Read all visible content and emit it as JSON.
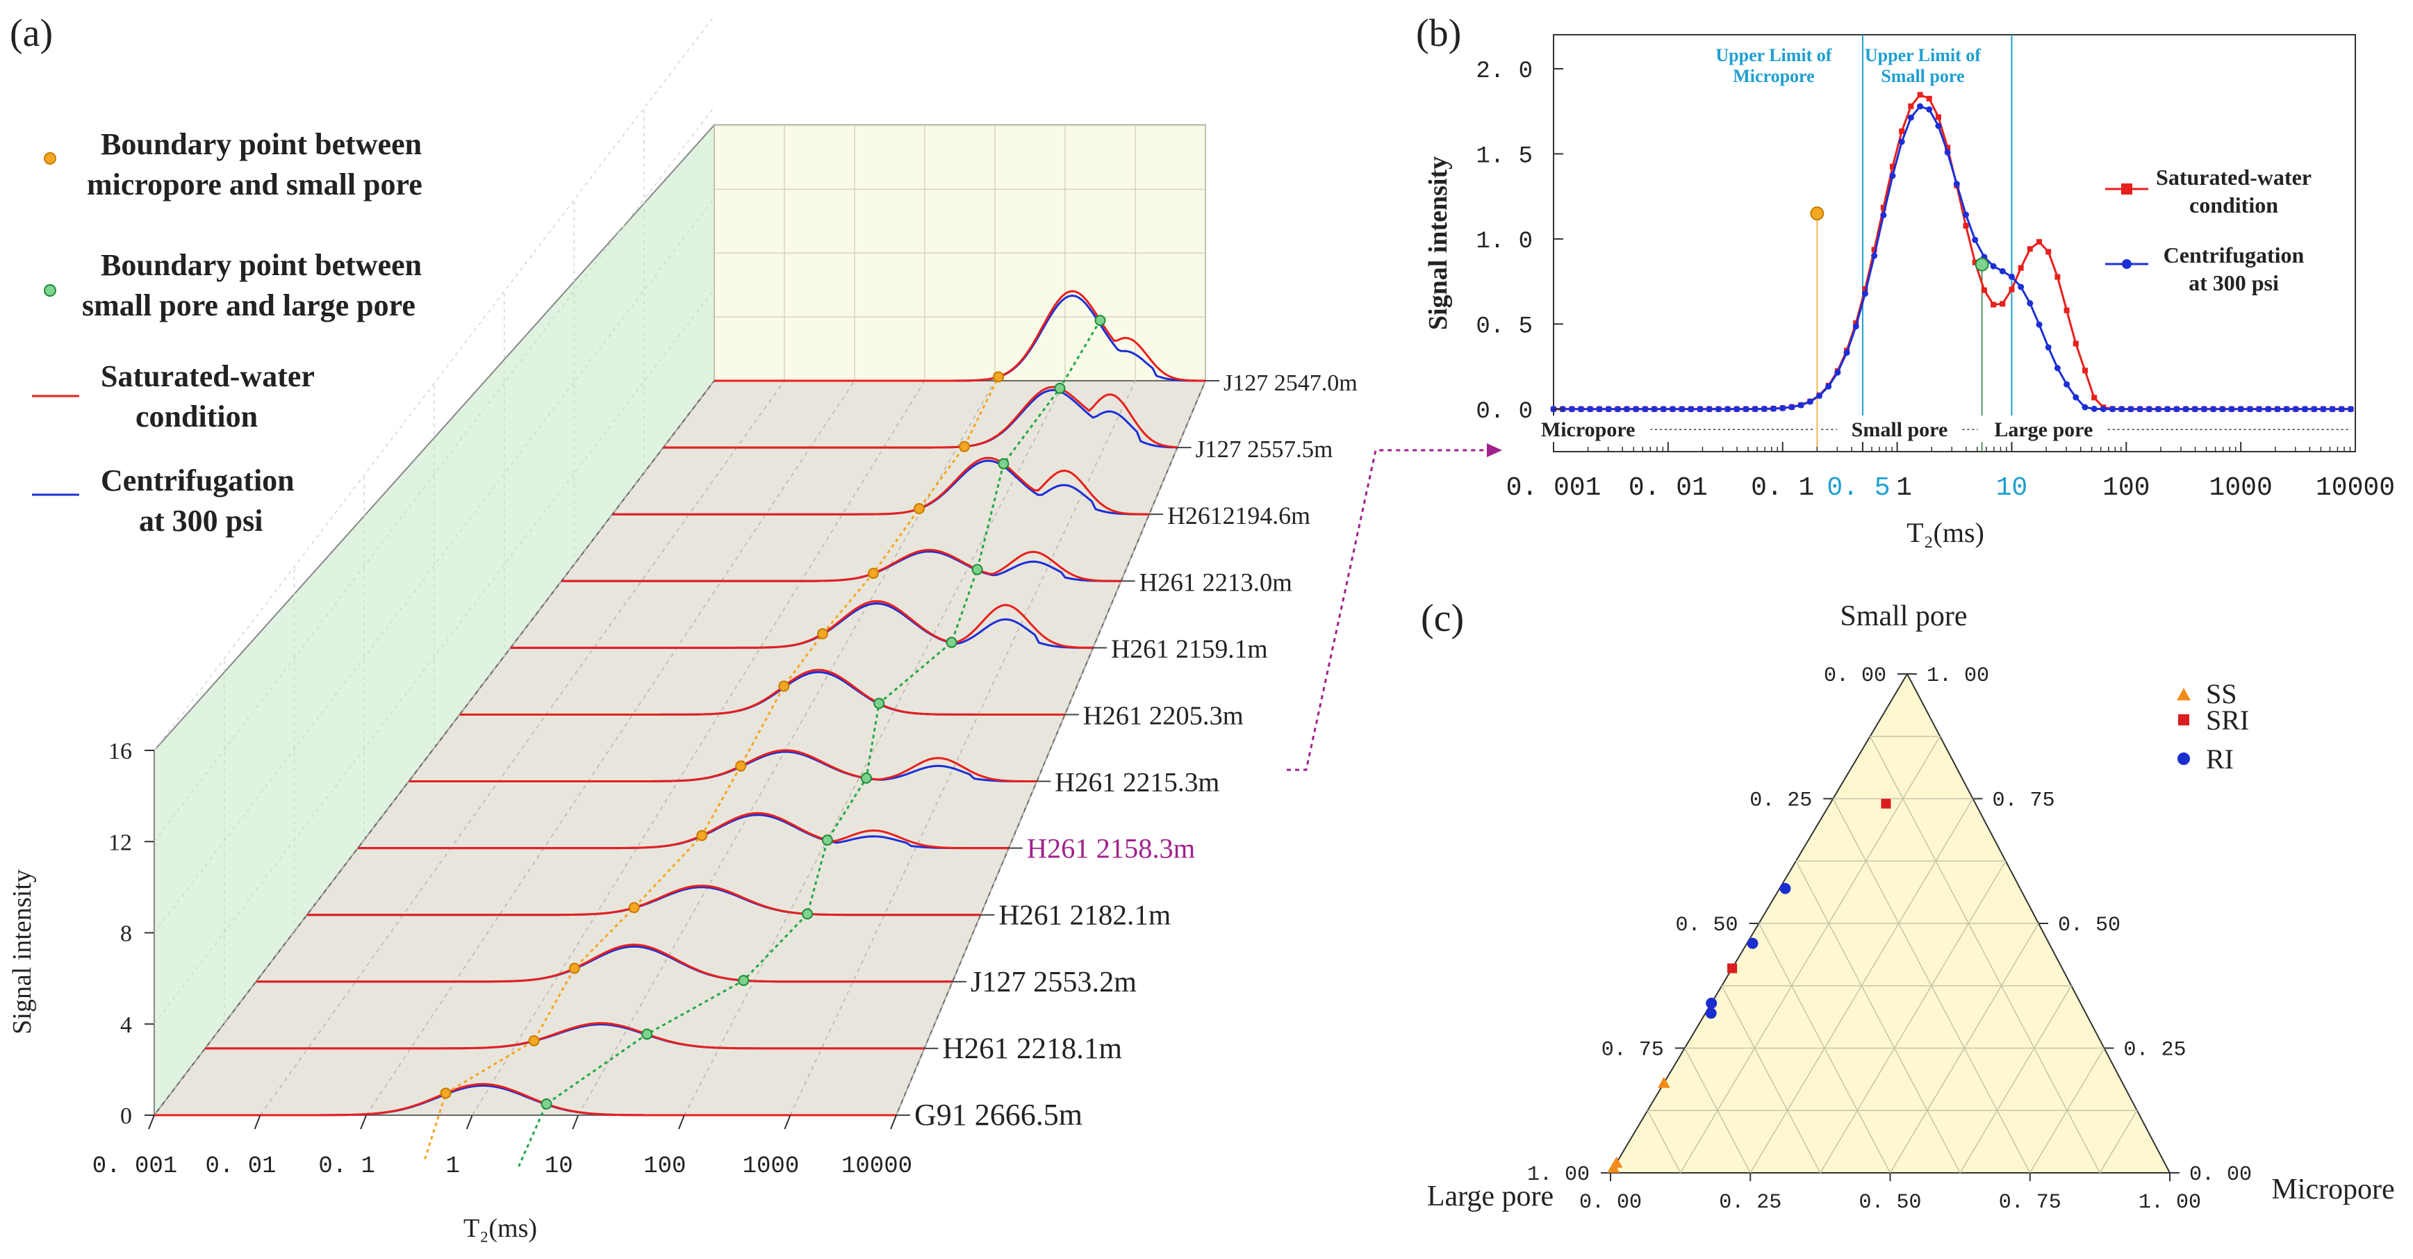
{
  "panel_labels": {
    "a": "(a)",
    "b": "(b)",
    "c": "(c)"
  },
  "colors": {
    "saturated": "#e8201c",
    "centrifuged": "#1c2fd6",
    "micro_small_point": "#f5a623",
    "small_large_point": "#22a845",
    "highlight": "#a0208c",
    "ternary_fill": "#fdf8d0",
    "left_wall": "#dff3e0",
    "back_wall": "#fafae8",
    "floor": "#e8e6dc",
    "limit_line": "#1e9fd0",
    "ss": "#f08c1a",
    "sri": "#d81e1e",
    "ri": "#1a2ed0"
  },
  "chart_data": [
    {
      "id": "a",
      "type": "line",
      "title": "",
      "xlabel": "T₂(ms)",
      "ylabel": "Signal intensity",
      "x_ticks": [
        "0. 001",
        "0. 01",
        "0. 1",
        "1",
        "10",
        "100",
        "1000",
        "10000"
      ],
      "y_ticks": [
        "0",
        "4",
        "8",
        "12",
        "16"
      ],
      "xlim_log10": [
        -3,
        4
      ],
      "ylim": [
        0,
        16
      ],
      "legend": [
        {
          "name": "Boundary point between micropore  and small pore",
          "line1": "Boundary point between",
          "line2": "micropore  and small pore",
          "marker": "orange-circle"
        },
        {
          "name": "Boundary point between small pore  and large pore",
          "line1": "Boundary point between",
          "line2": "small pore  and large pore",
          "marker": "green-circle"
        },
        {
          "name": "Saturated-water condition",
          "line1": "Saturated-water",
          "line2": "condition",
          "marker": "red-line"
        },
        {
          "name": "Centrifugation at 300 psi",
          "line1": "Centrifugation",
          "line2": "at 300 psi",
          "marker": "blue-line"
        }
      ],
      "samples": [
        {
          "label": "G91 2666.5m",
          "peak_log_t2": 0.1,
          "peak_amp": 1.6,
          "boundary_micro_small_log": -0.25,
          "boundary_small_large_log": 0.7,
          "second_peak_log": null,
          "second_amp": 0
        },
        {
          "label": "H261 2218.1m",
          "peak_log_t2": 0.85,
          "peak_amp": 1.3,
          "boundary_micro_small_log": 0.2,
          "boundary_small_large_log": 1.3,
          "second_peak_log": null,
          "second_amp": 0
        },
        {
          "label": "J127 2553.2m",
          "peak_log_t2": 0.8,
          "peak_amp": 1.9,
          "boundary_micro_small_log": 0.2,
          "boundary_small_large_log": 1.9,
          "second_peak_log": null,
          "second_amp": 0
        },
        {
          "label": "H261 2182.1m",
          "peak_log_t2": 1.1,
          "peak_amp": 1.5,
          "boundary_micro_small_log": 0.4,
          "boundary_small_large_log": 2.2,
          "second_peak_log": null,
          "second_amp": 0
        },
        {
          "label": "H261 2158.3m",
          "peak_log_t2": 1.3,
          "peak_amp": 1.8,
          "boundary_micro_small_log": 0.7,
          "boundary_small_large_log": 2.05,
          "second_peak_log": 2.55,
          "second_amp": 0.9,
          "highlight": true
        },
        {
          "label": "H261 2215.3m",
          "peak_log_t2": 1.2,
          "peak_amp": 1.6,
          "boundary_micro_small_log": 0.7,
          "boundary_small_large_log": 2.1,
          "second_peak_log": 2.9,
          "second_amp": 1.2
        },
        {
          "label": "H261 2205.3m",
          "peak_log_t2": 1.15,
          "peak_amp": 2.3,
          "boundary_micro_small_log": 0.75,
          "boundary_small_large_log": 1.85,
          "second_peak_log": null,
          "second_amp": 0
        },
        {
          "label": "H261 2159.1m",
          "peak_log_t2": 1.4,
          "peak_amp": 2.4,
          "boundary_micro_small_log": 0.75,
          "boundary_small_large_log": 2.3,
          "second_peak_log": 2.95,
          "second_amp": 2.2
        },
        {
          "label": "H261 2213.0m",
          "peak_log_t2": 1.6,
          "peak_amp": 1.6,
          "boundary_micro_small_log": 0.9,
          "boundary_small_large_log": 2.2,
          "second_peak_log": 2.9,
          "second_amp": 1.5
        },
        {
          "label": "H2612194.6m",
          "peak_log_t2": 1.9,
          "peak_amp": 2.9,
          "boundary_micro_small_log": 1.0,
          "boundary_small_large_log": 2.1,
          "second_peak_log": 2.9,
          "second_amp": 2.2
        },
        {
          "label": "J127 2557.5m",
          "peak_log_t2": 2.3,
          "peak_amp": 3.1,
          "boundary_micro_small_log": 1.1,
          "boundary_small_large_log": 2.4,
          "second_peak_log": 3.1,
          "second_amp": 2.6
        },
        {
          "label": "J127 2547.0m",
          "peak_log_t2": 2.1,
          "peak_amp": 4.6,
          "boundary_micro_small_log": 1.05,
          "boundary_small_large_log": 2.5,
          "second_peak_log": 2.9,
          "second_amp": 2.0
        }
      ]
    },
    {
      "id": "b",
      "type": "line",
      "title": "",
      "xlabel": "T₂(ms)",
      "ylabel": "Signal intensity",
      "x_ticks": [
        "0. 001",
        "0. 01",
        "0. 1",
        "0. 5",
        "1",
        "10",
        "100",
        "1000",
        "10000"
      ],
      "y_ticks": [
        "0. 0",
        "0. 5",
        "1. 0",
        "1. 5",
        "2. 0"
      ],
      "xlim_log10": [
        -3,
        4
      ],
      "ylim": [
        -0.25,
        2.2
      ],
      "grid": false,
      "limit_lines": [
        {
          "at": 0.5,
          "line1": "Upper Limit of",
          "line2": "Micropore"
        },
        {
          "at": 10,
          "line1": "Upper Limit of",
          "line2": "Small pore"
        }
      ],
      "region_labels": [
        "Micropore",
        "Small pore",
        "Large pore"
      ],
      "series": [
        {
          "name": "Saturated-water condition",
          "line1": "Saturated-water",
          "line2": "condition",
          "components": [
            {
              "center_log": 0.22,
              "sigma": 0.36,
              "amp": 1.85
            },
            {
              "center_log": 1.25,
              "sigma": 0.23,
              "amp": 0.95
            }
          ],
          "cutoff_log": 1.68,
          "marker": "square"
        },
        {
          "name": "Centrifugation at 300 psi",
          "line1": "Centrifugation",
          "line2": "at 300 psi",
          "components": [
            {
              "center_log": 0.22,
              "sigma": 0.36,
              "amp": 1.78
            },
            {
              "center_log": 1.05,
              "sigma": 0.25,
              "amp": 0.62
            }
          ],
          "cutoff_log": 1.55,
          "marker": "circle"
        }
      ],
      "boundary_points": [
        {
          "x": 0.2,
          "y": 1.15,
          "kind": "micro-small"
        },
        {
          "x": 5.5,
          "y": 0.85,
          "kind": "small-large"
        }
      ]
    },
    {
      "id": "c",
      "type": "scatter",
      "subtype": "ternary",
      "axes": {
        "top": "Small pore",
        "left": "Large pore",
        "right": "Micropore"
      },
      "tick_values": [
        "0. 00",
        "0. 25",
        "0. 50",
        "0. 75",
        "1. 00"
      ],
      "legend": [
        {
          "name": "SS",
          "marker": "triangle"
        },
        {
          "name": "SRI",
          "marker": "square"
        },
        {
          "name": "RI",
          "marker": "circle"
        }
      ],
      "points": [
        {
          "group": "SS",
          "small": 0.01,
          "micro": 0.0,
          "large": 0.99
        },
        {
          "group": "SS",
          "small": 0.02,
          "micro": 0.0,
          "large": 0.98
        },
        {
          "group": "SS",
          "small": 0.18,
          "micro": 0.0,
          "large": 0.82
        },
        {
          "group": "SRI",
          "small": 0.74,
          "micro": 0.1,
          "large": 0.16
        },
        {
          "group": "SRI",
          "small": 0.41,
          "micro": 0.0,
          "large": 0.59
        },
        {
          "group": "RI",
          "small": 0.57,
          "micro": 0.01,
          "large": 0.42
        },
        {
          "group": "RI",
          "small": 0.46,
          "micro": 0.01,
          "large": 0.53
        },
        {
          "group": "RI",
          "small": 0.34,
          "micro": 0.0,
          "large": 0.66
        },
        {
          "group": "RI",
          "small": 0.32,
          "micro": 0.01,
          "large": 0.67
        }
      ]
    }
  ]
}
